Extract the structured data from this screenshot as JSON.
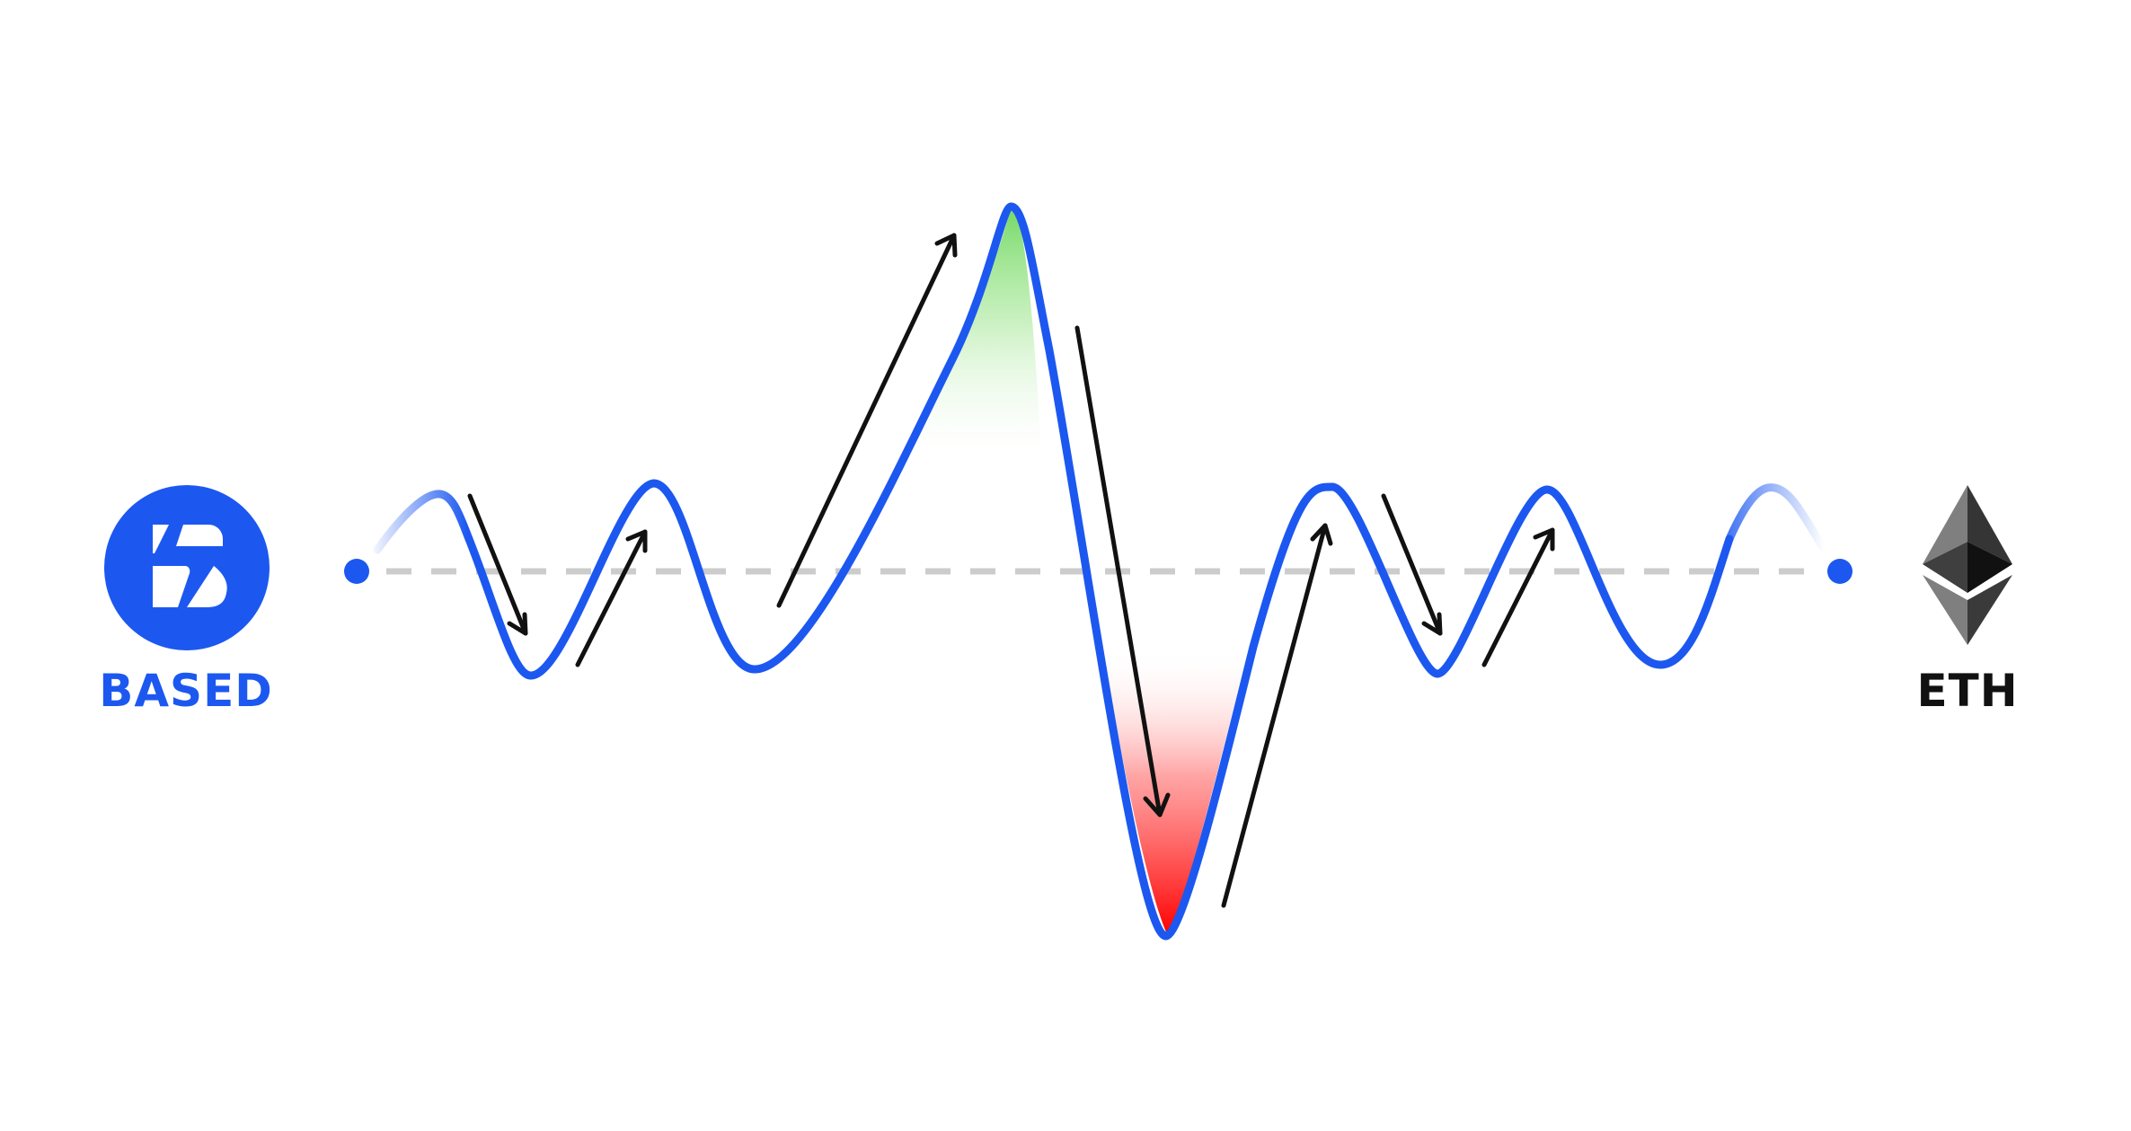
{
  "left_token": {
    "label": "BASED",
    "icon": "based-logo-icon",
    "color": "#1c58f0"
  },
  "right_token": {
    "label": "ETH",
    "icon": "ethereum-logo-icon",
    "color": "#111111"
  },
  "colors": {
    "wave": "#1c58f0",
    "baseline": "#cccccc",
    "arrows": "#111111",
    "gain_fill": "#7cdd6c",
    "loss_fill": "#ff1a1a"
  }
}
